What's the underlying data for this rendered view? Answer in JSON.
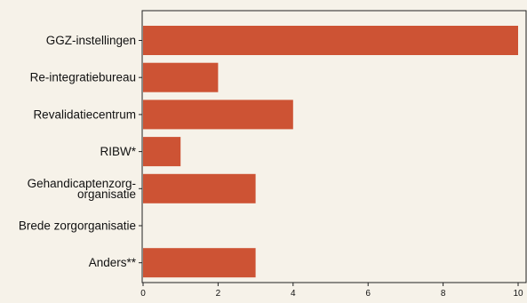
{
  "chart_data": {
    "type": "bar",
    "orientation": "horizontal",
    "categories": [
      "GGZ-instellingen",
      "Re-integratiebureau",
      "Revalidatiecentrum",
      "RIBW*",
      "Gehandicaptenzorg-\norganisatie",
      "Brede zorgorganisatie",
      "Anders**"
    ],
    "values": [
      10,
      2,
      4,
      1,
      3,
      0,
      3
    ],
    "xlim": [
      0,
      10
    ],
    "xticks": [
      0,
      2,
      4,
      6,
      8,
      10
    ],
    "bar_color": "#cd5334",
    "grid": false,
    "title": "",
    "xlabel": "",
    "ylabel": ""
  }
}
